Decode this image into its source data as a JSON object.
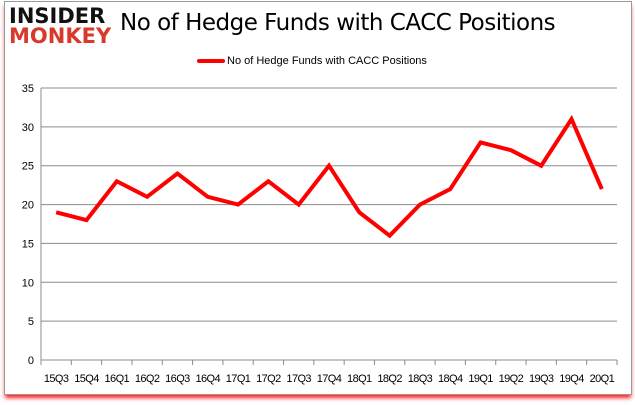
{
  "logo": {
    "line1": "INSIDER",
    "line2": "MONKEY"
  },
  "chart_data": {
    "type": "line",
    "title": "No of Hedge Funds with CACC Positions",
    "categories": [
      "15Q3",
      "15Q4",
      "16Q1",
      "16Q2",
      "16Q3",
      "16Q4",
      "17Q1",
      "17Q2",
      "17Q3",
      "17Q4",
      "18Q1",
      "18Q2",
      "18Q3",
      "18Q4",
      "19Q1",
      "19Q2",
      "19Q3",
      "19Q4",
      "20Q1"
    ],
    "series": [
      {
        "name": "No of Hedge Funds with CACC Positions",
        "color": "#ff0000",
        "values": [
          19,
          18,
          23,
          21,
          24,
          21,
          20,
          23,
          20,
          25,
          19,
          16,
          20,
          22,
          28,
          27,
          25,
          31,
          22
        ]
      }
    ],
    "ylim": [
      0,
      35
    ],
    "yticks": [
      0,
      5,
      10,
      15,
      20,
      25,
      30,
      35
    ],
    "grid": true,
    "legend": "top-center",
    "xlabel": "",
    "ylabel": ""
  }
}
